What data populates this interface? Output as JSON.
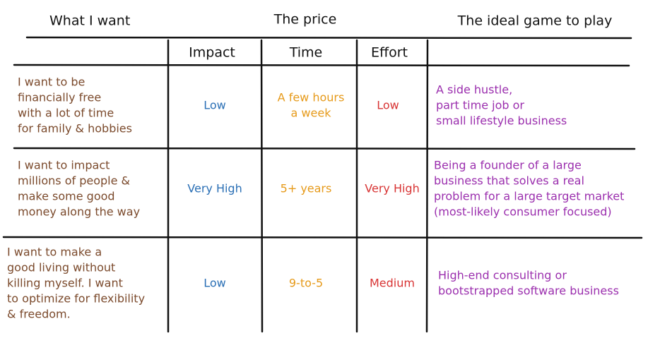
{
  "header": {
    "groups": [
      "What I want",
      "The price",
      "The ideal game to play"
    ],
    "columns": [
      "Impact",
      "Time",
      "Effort"
    ]
  },
  "table": {
    "rows": [
      {
        "want": [
          "I want to be",
          "financially free",
          "with a lot of time",
          "for family & hobbies"
        ],
        "impact": [
          "Low"
        ],
        "time": [
          "A few hours",
          "a week"
        ],
        "effort": [
          "Low"
        ],
        "game": [
          "A side hustle,",
          "part time job or",
          "small lifestyle business"
        ]
      },
      {
        "want": [
          "I want to impact",
          "millions of people &",
          "make some good",
          "money along the way"
        ],
        "impact": [
          "Very High"
        ],
        "time": [
          "5+ years"
        ],
        "effort": [
          "Very High"
        ],
        "game": [
          "Being a founder of a large",
          "business that solves a real",
          "problem for a large target market",
          "(most-likely consumer focused)"
        ]
      },
      {
        "want": [
          "I want to make a",
          "good living without",
          "killing myself. I want",
          "to optimize for flexibility",
          "& freedom."
        ],
        "impact": [
          "Low"
        ],
        "time": [
          "9-to-5"
        ],
        "effort": [
          "Medium"
        ],
        "game": [
          "High-end consulting or",
          "bootstrapped software business"
        ]
      }
    ]
  }
}
